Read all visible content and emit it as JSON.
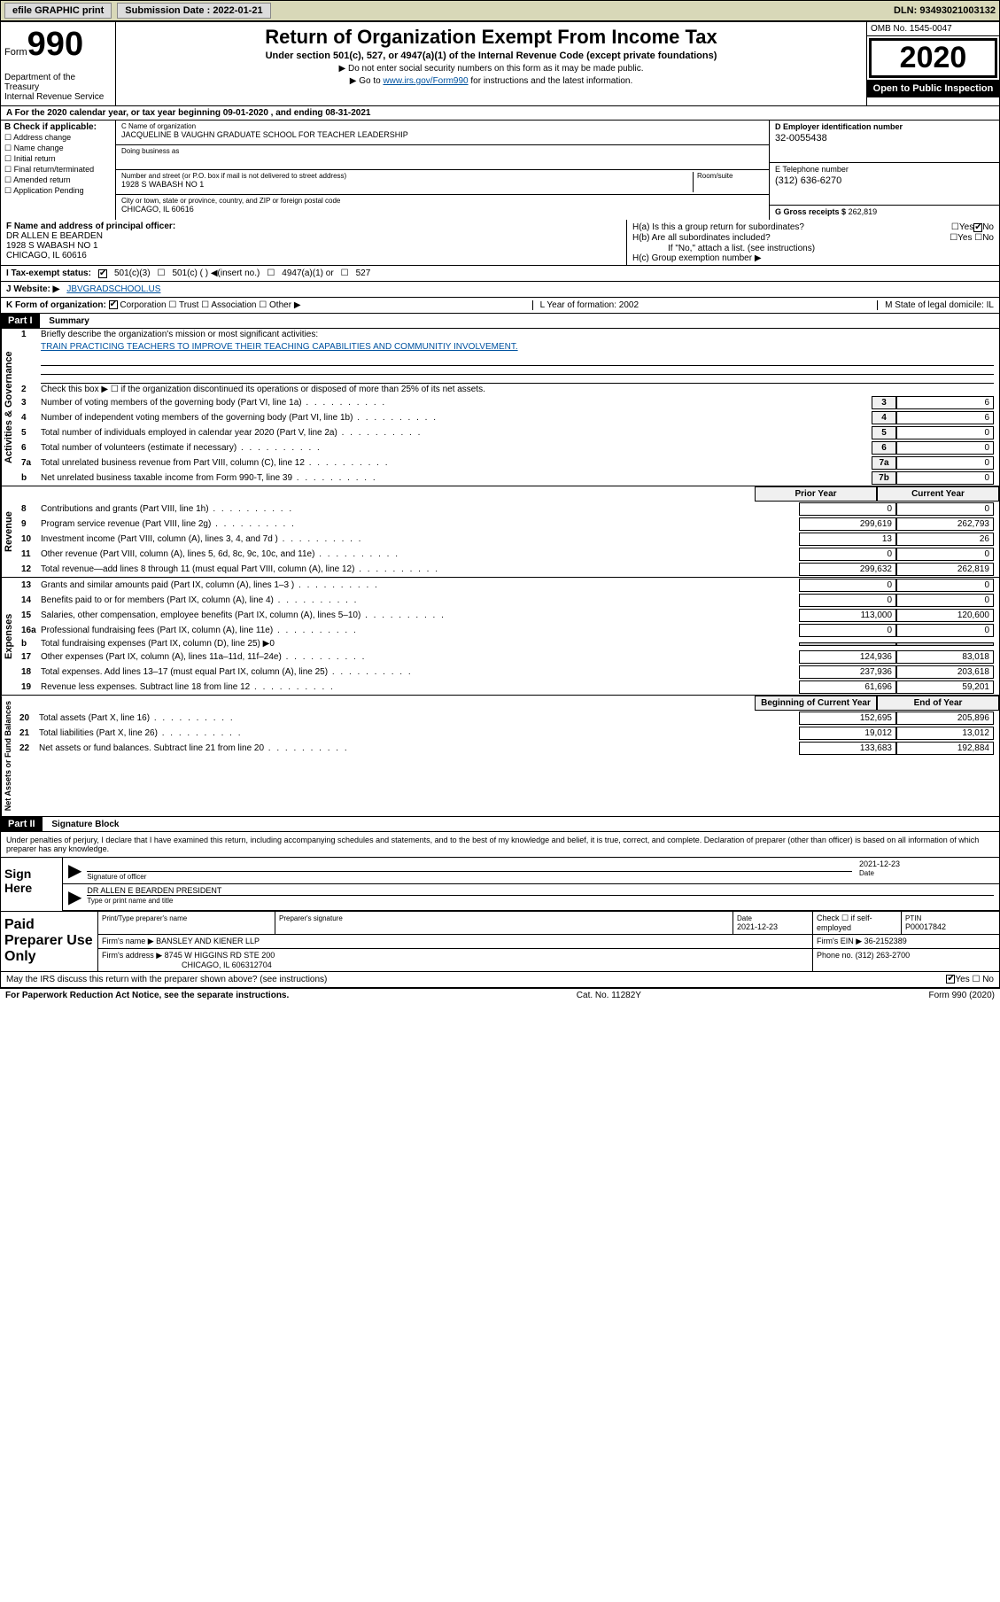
{
  "top": {
    "efile": "efile GRAPHIC print",
    "subm_lbl": "Submission Date : 2022-01-21",
    "dln": "DLN: 93493021003132"
  },
  "hdr": {
    "form_word": "Form",
    "form_num": "990",
    "dept": "Department of the Treasury\nInternal Revenue Service",
    "title": "Return of Organization Exempt From Income Tax",
    "subtitle": "Under section 501(c), 527, or 4947(a)(1) of the Internal Revenue Code (except private foundations)",
    "instr1": "▶ Do not enter social security numbers on this form as it may be made public.",
    "instr2_pre": "▶ Go to ",
    "instr2_link": "www.irs.gov/Form990",
    "instr2_post": " for instructions and the latest information.",
    "omb": "OMB No. 1545-0047",
    "year": "2020",
    "pub": "Open to Public Inspection"
  },
  "A": "A For the 2020 calendar year, or tax year beginning 09-01-2020    , and ending 08-31-2021",
  "B": {
    "lbl": "B Check if applicable:",
    "opts": [
      "Address change",
      "Name change",
      "Initial return",
      "Final return/terminated",
      "Amended return",
      "Application Pending"
    ]
  },
  "C": {
    "name_lbl": "C Name of organization",
    "name": "JACQUELINE B VAUGHN GRADUATE SCHOOL FOR TEACHER LEADERSHIP",
    "dba_lbl": "Doing business as",
    "addr_lbl": "Number and street (or P.O. box if mail is not delivered to street address)",
    "room_lbl": "Room/suite",
    "addr": "1928 S WABASH NO 1",
    "city_lbl": "City or town, state or province, country, and ZIP or foreign postal code",
    "city": "CHICAGO, IL  60616"
  },
  "D": {
    "lbl": "D Employer identification number",
    "val": "32-0055438"
  },
  "E": {
    "lbl": "E Telephone number",
    "val": "(312) 636-6270"
  },
  "G": {
    "lbl": "G Gross receipts $",
    "val": "262,819"
  },
  "F": {
    "lbl": "F  Name and address of principal officer:",
    "name": "DR ALLEN E BEARDEN",
    "addr": "1928 S WABASH NO 1",
    "city": "CHICAGO, IL  60616"
  },
  "H": {
    "a": "H(a)  Is this a group return for subordinates?",
    "b": "H(b)  Are all subordinates included?",
    "b_note": "If \"No,\" attach a list. (see instructions)",
    "c": "H(c)  Group exemption number ▶"
  },
  "I": {
    "lbl": "I    Tax-exempt status:",
    "o1": "501(c)(3)",
    "o2": "501(c) (  ) ◀(insert no.)",
    "o3": "4947(a)(1) or",
    "o4": "527"
  },
  "J": {
    "lbl": "J    Website: ▶",
    "val": "JBVGRADSCHOOL.US"
  },
  "K": {
    "lbl": "K Form of organization:",
    "o1": "Corporation",
    "o2": "Trust",
    "o3": "Association",
    "o4": "Other ▶",
    "L": "L Year of formation: 2002",
    "M": "M State of legal domicile: IL"
  },
  "part1": {
    "hdr": "Part I",
    "title": "Summary",
    "tab1": "Activities & Governance",
    "tab2": "Revenue",
    "tab3": "Expenses",
    "tab4": "Net Assets or Fund Balances",
    "l1": "Briefly describe the organization's mission or most significant activities:",
    "mission": "TRAIN PRACTICING TEACHERS TO IMPROVE THEIR TEACHING CAPABILITIES AND COMMUNITIY INVOLVEMENT.",
    "l2": "Check this box ▶ ☐  if the organization discontinued its operations or disposed of more than 25% of its net assets.",
    "lines_a": [
      {
        "n": "3",
        "d": "Number of voting members of the governing body (Part VI, line 1a)",
        "box": "3",
        "v": "6"
      },
      {
        "n": "4",
        "d": "Number of independent voting members of the governing body (Part VI, line 1b)",
        "box": "4",
        "v": "6"
      },
      {
        "n": "5",
        "d": "Total number of individuals employed in calendar year 2020 (Part V, line 2a)",
        "box": "5",
        "v": "0"
      },
      {
        "n": "6",
        "d": "Total number of volunteers (estimate if necessary)",
        "box": "6",
        "v": "0"
      },
      {
        "n": "7a",
        "d": "Total unrelated business revenue from Part VIII, column (C), line 12",
        "box": "7a",
        "v": "0"
      },
      {
        "n": "b",
        "d": "Net unrelated business taxable income from Form 990-T, line 39",
        "box": "7b",
        "v": "0"
      }
    ],
    "col_prior": "Prior Year",
    "col_curr": "Current Year",
    "rev": [
      {
        "n": "8",
        "d": "Contributions and grants (Part VIII, line 1h)",
        "p": "0",
        "c": "0"
      },
      {
        "n": "9",
        "d": "Program service revenue (Part VIII, line 2g)",
        "p": "299,619",
        "c": "262,793"
      },
      {
        "n": "10",
        "d": "Investment income (Part VIII, column (A), lines 3, 4, and 7d )",
        "p": "13",
        "c": "26"
      },
      {
        "n": "11",
        "d": "Other revenue (Part VIII, column (A), lines 5, 6d, 8c, 9c, 10c, and 11e)",
        "p": "0",
        "c": "0"
      },
      {
        "n": "12",
        "d": "Total revenue—add lines 8 through 11 (must equal Part VIII, column (A), line 12)",
        "p": "299,632",
        "c": "262,819"
      }
    ],
    "exp": [
      {
        "n": "13",
        "d": "Grants and similar amounts paid (Part IX, column (A), lines 1–3 )",
        "p": "0",
        "c": "0"
      },
      {
        "n": "14",
        "d": "Benefits paid to or for members (Part IX, column (A), line 4)",
        "p": "0",
        "c": "0"
      },
      {
        "n": "15",
        "d": "Salaries, other compensation, employee benefits (Part IX, column (A), lines 5–10)",
        "p": "113,000",
        "c": "120,600"
      },
      {
        "n": "16a",
        "d": "Professional fundraising fees (Part IX, column (A), line 11e)",
        "p": "0",
        "c": "0"
      },
      {
        "n": "b",
        "d": "Total fundraising expenses (Part IX, column (D), line 25) ▶0",
        "p": "",
        "c": ""
      },
      {
        "n": "17",
        "d": "Other expenses (Part IX, column (A), lines 11a–11d, 11f–24e)",
        "p": "124,936",
        "c": "83,018"
      },
      {
        "n": "18",
        "d": "Total expenses. Add lines 13–17 (must equal Part IX, column (A), line 25)",
        "p": "237,936",
        "c": "203,618"
      },
      {
        "n": "19",
        "d": "Revenue less expenses. Subtract line 18 from line 12",
        "p": "61,696",
        "c": "59,201"
      }
    ],
    "col_beg": "Beginning of Current Year",
    "col_end": "End of Year",
    "net": [
      {
        "n": "20",
        "d": "Total assets (Part X, line 16)",
        "p": "152,695",
        "c": "205,896"
      },
      {
        "n": "21",
        "d": "Total liabilities (Part X, line 26)",
        "p": "19,012",
        "c": "13,012"
      },
      {
        "n": "22",
        "d": "Net assets or fund balances. Subtract line 21 from line 20",
        "p": "133,683",
        "c": "192,884"
      }
    ]
  },
  "part2": {
    "hdr": "Part II",
    "title": "Signature Block",
    "penalty": "Under penalties of perjury, I declare that I have examined this return, including accompanying schedules and statements, and to the best of my knowledge and belief, it is true, correct, and complete. Declaration of preparer (other than officer) is based on all information of which preparer has any knowledge.",
    "sign_here": "Sign Here",
    "sig_of": "Signature of officer",
    "sig_date_lbl": "Date",
    "sig_date": "2021-12-23",
    "sig_name": "DR ALLEN E BEARDEN  PRESIDENT",
    "sig_type": "Type or print name and title",
    "paid": "Paid Preparer Use Only",
    "pp_name_lbl": "Print/Type preparer's name",
    "pp_sig_lbl": "Preparer's signature",
    "pp_date_lbl": "Date",
    "pp_date": "2021-12-23",
    "pp_check": "Check ☐ if self-employed",
    "ptin_lbl": "PTIN",
    "ptin": "P00017842",
    "firm_name_lbl": "Firm's name     ▶",
    "firm_name": "BANSLEY AND KIENER LLP",
    "firm_ein_lbl": "Firm's EIN ▶",
    "firm_ein": "36-2152389",
    "firm_addr_lbl": "Firm's address ▶",
    "firm_addr": "8745 W HIGGINS RD STE 200",
    "firm_city": "CHICAGO, IL  606312704",
    "phone_lbl": "Phone no.",
    "phone": "(312) 263-2700",
    "discuss": "May the IRS discuss this return with the preparer shown above? (see instructions)"
  },
  "footer": {
    "pra": "For Paperwork Reduction Act Notice, see the separate instructions.",
    "cat": "Cat. No. 11282Y",
    "form": "Form 990 (2020)"
  }
}
